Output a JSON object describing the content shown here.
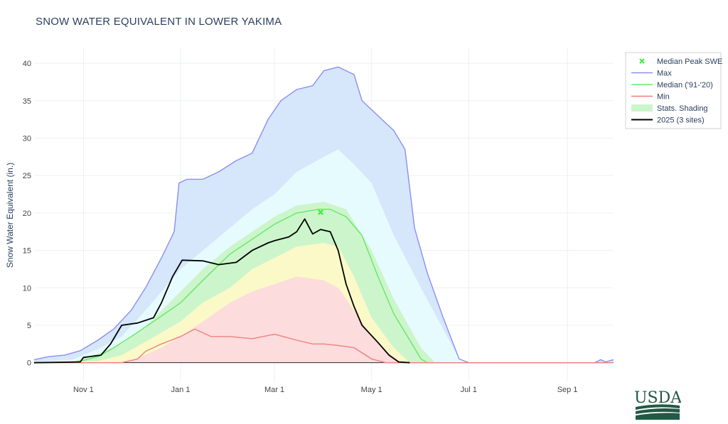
{
  "chart_data": {
    "type": "area",
    "title": "SNOW WATER EQUIVALENT IN LOWER YAKIMA",
    "xlabel": "",
    "ylabel": "Snow Water Equivalent (in.)",
    "xlim": [
      "2024-10-01",
      "2025-09-30"
    ],
    "ylim": [
      -2.5,
      42
    ],
    "x_ticks": [
      {
        "date": "2024-11-01",
        "label": "Nov 1"
      },
      {
        "date": "2025-01-01",
        "label": "Jan 1"
      },
      {
        "date": "2025-03-01",
        "label": "Mar 1"
      },
      {
        "date": "2025-05-01",
        "label": "May 1"
      },
      {
        "date": "2025-07-01",
        "label": "Jul 1"
      },
      {
        "date": "2025-09-01",
        "label": "Sep 1"
      }
    ],
    "y_ticks": [
      0,
      5,
      10,
      15,
      20,
      25,
      30,
      35,
      40
    ],
    "grid": true,
    "legend_position": "top-right",
    "legend": [
      {
        "name": "Median Peak SWE",
        "kind": "marker",
        "color": "#44ee44"
      },
      {
        "name": "Max",
        "kind": "line",
        "color": "#8c8ff0"
      },
      {
        "name": "Median ('91-'20)",
        "kind": "line",
        "color": "#66e866"
      },
      {
        "name": "Min",
        "kind": "line",
        "color": "#f08080"
      },
      {
        "name": "Stats. Shading",
        "kind": "fill",
        "color": "#ccf5cc"
      },
      {
        "name": "2025 (3 sites)",
        "kind": "line",
        "color": "#000000"
      }
    ],
    "series": [
      {
        "name": "Max",
        "color": "#8c8ff0",
        "points": [
          [
            "2024-10-01",
            0.4
          ],
          [
            "2024-10-10",
            0.8
          ],
          [
            "2024-10-20",
            1.0
          ],
          [
            "2024-10-30",
            1.6
          ],
          [
            "2024-11-10",
            3.0
          ],
          [
            "2024-11-20",
            4.5
          ],
          [
            "2024-12-01",
            7.0
          ],
          [
            "2024-12-10",
            10.0
          ],
          [
            "2024-12-20",
            14.0
          ],
          [
            "2024-12-28",
            17.5
          ],
          [
            "2024-12-31",
            24.0
          ],
          [
            "2025-01-05",
            24.5
          ],
          [
            "2025-01-15",
            24.5
          ],
          [
            "2025-01-25",
            25.5
          ],
          [
            "2025-02-05",
            27.0
          ],
          [
            "2025-02-15",
            28.0
          ],
          [
            "2025-02-25",
            32.5
          ],
          [
            "2025-03-05",
            35.0
          ],
          [
            "2025-03-15",
            36.5
          ],
          [
            "2025-03-25",
            37.0
          ],
          [
            "2025-04-01",
            39.0
          ],
          [
            "2025-04-10",
            39.5
          ],
          [
            "2025-04-15",
            39.0
          ],
          [
            "2025-04-20",
            38.5
          ],
          [
            "2025-04-25",
            35.0
          ],
          [
            "2025-05-05",
            33.0
          ],
          [
            "2025-05-15",
            31.0
          ],
          [
            "2025-05-22",
            28.5
          ],
          [
            "2025-05-28",
            18.0
          ],
          [
            "2025-06-05",
            12.0
          ],
          [
            "2025-06-15",
            6.0
          ],
          [
            "2025-06-25",
            0.5
          ],
          [
            "2025-07-01",
            0.0
          ],
          [
            "2025-09-18",
            0.0
          ],
          [
            "2025-09-22",
            0.4
          ],
          [
            "2025-09-25",
            0.1
          ],
          [
            "2025-09-30",
            0.4
          ]
        ]
      },
      {
        "name": "Median ('91-'20)",
        "color": "#66e866",
        "points": [
          [
            "2024-10-01",
            0.0
          ],
          [
            "2024-10-25",
            0.05
          ],
          [
            "2024-11-01",
            0.3
          ],
          [
            "2024-11-10",
            0.8
          ],
          [
            "2024-11-20",
            2.0
          ],
          [
            "2024-12-01",
            3.5
          ],
          [
            "2024-12-15",
            5.5
          ],
          [
            "2025-01-01",
            8.0
          ],
          [
            "2025-01-15",
            11.0
          ],
          [
            "2025-02-01",
            14.5
          ],
          [
            "2025-02-15",
            16.5
          ],
          [
            "2025-03-01",
            18.5
          ],
          [
            "2025-03-15",
            20.0
          ],
          [
            "2025-03-29",
            20.5
          ],
          [
            "2025-04-05",
            20.5
          ],
          [
            "2025-04-15",
            19.5
          ],
          [
            "2025-04-25",
            17.0
          ],
          [
            "2025-05-05",
            11.5
          ],
          [
            "2025-05-15",
            6.5
          ],
          [
            "2025-05-25",
            3.0
          ],
          [
            "2025-06-01",
            0.5
          ],
          [
            "2025-06-05",
            0.0
          ],
          [
            "2025-09-30",
            0.0
          ]
        ]
      },
      {
        "name": "Min",
        "color": "#f08080",
        "points": [
          [
            "2024-10-01",
            0.0
          ],
          [
            "2024-11-25",
            0.0
          ],
          [
            "2024-12-01",
            0.3
          ],
          [
            "2024-12-05",
            0.5
          ],
          [
            "2024-12-10",
            1.5
          ],
          [
            "2024-12-20",
            2.5
          ],
          [
            "2025-01-01",
            3.5
          ],
          [
            "2025-01-10",
            4.5
          ],
          [
            "2025-01-20",
            3.5
          ],
          [
            "2025-02-01",
            3.5
          ],
          [
            "2025-02-15",
            3.2
          ],
          [
            "2025-03-01",
            3.8
          ],
          [
            "2025-03-15",
            3.0
          ],
          [
            "2025-03-25",
            2.5
          ],
          [
            "2025-04-01",
            2.5
          ],
          [
            "2025-04-10",
            2.3
          ],
          [
            "2025-04-20",
            2.0
          ],
          [
            "2025-05-01",
            0.5
          ],
          [
            "2025-05-10",
            0.0
          ],
          [
            "2025-09-30",
            0.0
          ]
        ]
      },
      {
        "name": "2025 (3 sites)",
        "color": "#000000",
        "points": [
          [
            "2024-10-01",
            0.0
          ],
          [
            "2024-10-30",
            0.1
          ],
          [
            "2024-11-01",
            0.7
          ],
          [
            "2024-11-08",
            0.9
          ],
          [
            "2024-11-12",
            1.0
          ],
          [
            "2024-11-18",
            2.5
          ],
          [
            "2024-11-25",
            5.0
          ],
          [
            "2024-12-05",
            5.3
          ],
          [
            "2024-12-15",
            6.0
          ],
          [
            "2024-12-20",
            8.0
          ],
          [
            "2024-12-27",
            11.5
          ],
          [
            "2025-01-02",
            13.7
          ],
          [
            "2025-01-15",
            13.6
          ],
          [
            "2025-01-25",
            13.1
          ],
          [
            "2025-02-05",
            13.4
          ],
          [
            "2025-02-15",
            15.0
          ],
          [
            "2025-02-25",
            16.0
          ],
          [
            "2025-03-01",
            16.3
          ],
          [
            "2025-03-10",
            16.8
          ],
          [
            "2025-03-15",
            17.5
          ],
          [
            "2025-03-20",
            19.2
          ],
          [
            "2025-03-25",
            17.2
          ],
          [
            "2025-03-30",
            17.8
          ],
          [
            "2025-04-05",
            17.5
          ],
          [
            "2025-04-10",
            15.0
          ],
          [
            "2025-04-15",
            10.5
          ],
          [
            "2025-04-20",
            7.5
          ],
          [
            "2025-04-25",
            5.0
          ],
          [
            "2025-05-05",
            2.7
          ],
          [
            "2025-05-12",
            1.0
          ],
          [
            "2025-05-18",
            0.1
          ],
          [
            "2025-05-25",
            0.0
          ]
        ]
      }
    ],
    "bands": [
      {
        "name": "Stats. Shading (outer, 90th pct)",
        "color": "#e6fbfd",
        "points": [
          [
            "2024-10-01",
            0.1
          ],
          [
            "2024-10-25",
            0.4
          ],
          [
            "2024-11-10",
            1.8
          ],
          [
            "2024-11-25",
            3.5
          ],
          [
            "2024-12-10",
            7.0
          ],
          [
            "2025-01-01",
            12.5
          ],
          [
            "2025-01-15",
            15.0
          ],
          [
            "2025-02-01",
            18.0
          ],
          [
            "2025-02-15",
            20.5
          ],
          [
            "2025-03-01",
            22.5
          ],
          [
            "2025-03-15",
            25.5
          ],
          [
            "2025-04-01",
            27.5
          ],
          [
            "2025-04-10",
            28.5
          ],
          [
            "2025-04-20",
            26.5
          ],
          [
            "2025-05-01",
            24.0
          ],
          [
            "2025-05-15",
            17.0
          ],
          [
            "2025-06-01",
            10.0
          ],
          [
            "2025-06-15",
            4.5
          ],
          [
            "2025-06-25",
            0.5
          ],
          [
            "2025-07-01",
            0.0
          ],
          [
            "2025-09-30",
            0.0
          ]
        ]
      },
      {
        "name": "Stats. Shading (70th pct)",
        "color": "#ccf5cc",
        "points": [
          [
            "2024-10-01",
            0.0
          ],
          [
            "2024-10-25",
            0.1
          ],
          [
            "2024-11-10",
            1.2
          ],
          [
            "2024-11-25",
            2.5
          ],
          [
            "2024-12-10",
            4.8
          ],
          [
            "2025-01-01",
            9.5
          ],
          [
            "2025-01-15",
            12.5
          ],
          [
            "2025-02-01",
            15.5
          ],
          [
            "2025-02-15",
            17.5
          ],
          [
            "2025-03-01",
            19.5
          ],
          [
            "2025-03-15",
            21.0
          ],
          [
            "2025-04-01",
            21.5
          ],
          [
            "2025-04-15",
            20.5
          ],
          [
            "2025-05-01",
            15.0
          ],
          [
            "2025-05-15",
            8.5
          ],
          [
            "2025-06-01",
            2.0
          ],
          [
            "2025-06-10",
            0.0
          ],
          [
            "2025-09-30",
            0.0
          ]
        ]
      },
      {
        "name": "Stats. Shading (30th pct)",
        "color": "#fbf9c8",
        "points": [
          [
            "2024-10-01",
            0.0
          ],
          [
            "2024-11-10",
            0.2
          ],
          [
            "2024-11-25",
            1.0
          ],
          [
            "2024-12-10",
            2.8
          ],
          [
            "2025-01-01",
            5.5
          ],
          [
            "2025-01-15",
            8.0
          ],
          [
            "2025-02-01",
            10.0
          ],
          [
            "2025-02-15",
            12.5
          ],
          [
            "2025-03-01",
            14.0
          ],
          [
            "2025-03-15",
            15.5
          ],
          [
            "2025-04-01",
            16.0
          ],
          [
            "2025-04-10",
            15.5
          ],
          [
            "2025-04-20",
            11.5
          ],
          [
            "2025-05-01",
            6.0
          ],
          [
            "2025-05-15",
            2.0
          ],
          [
            "2025-05-25",
            0.0
          ],
          [
            "2025-09-30",
            0.0
          ]
        ]
      },
      {
        "name": "Stats. Shading (10th pct)",
        "color": "#fcdcdc",
        "points": [
          [
            "2024-10-01",
            0.0
          ],
          [
            "2024-11-25",
            0.1
          ],
          [
            "2024-12-05",
            0.6
          ],
          [
            "2024-12-20",
            2.0
          ],
          [
            "2025-01-01",
            3.5
          ],
          [
            "2025-01-15",
            5.5
          ],
          [
            "2025-02-01",
            8.0
          ],
          [
            "2025-02-15",
            9.5
          ],
          [
            "2025-03-01",
            10.5
          ],
          [
            "2025-03-15",
            11.5
          ],
          [
            "2025-04-01",
            11.0
          ],
          [
            "2025-04-10",
            10.0
          ],
          [
            "2025-04-20",
            7.0
          ],
          [
            "2025-05-01",
            3.5
          ],
          [
            "2025-05-10",
            1.5
          ],
          [
            "2025-05-20",
            0.0
          ],
          [
            "2025-09-30",
            0.0
          ]
        ]
      },
      {
        "name": "Max fill",
        "color": "#d6e6fb",
        "ref_series": "Max"
      }
    ],
    "markers": [
      {
        "name": "Median Peak SWE",
        "x": "2025-03-30",
        "y": 20.1,
        "color": "#44ee44",
        "symbol": "x"
      }
    ]
  },
  "logo": {
    "text": "USDA"
  }
}
